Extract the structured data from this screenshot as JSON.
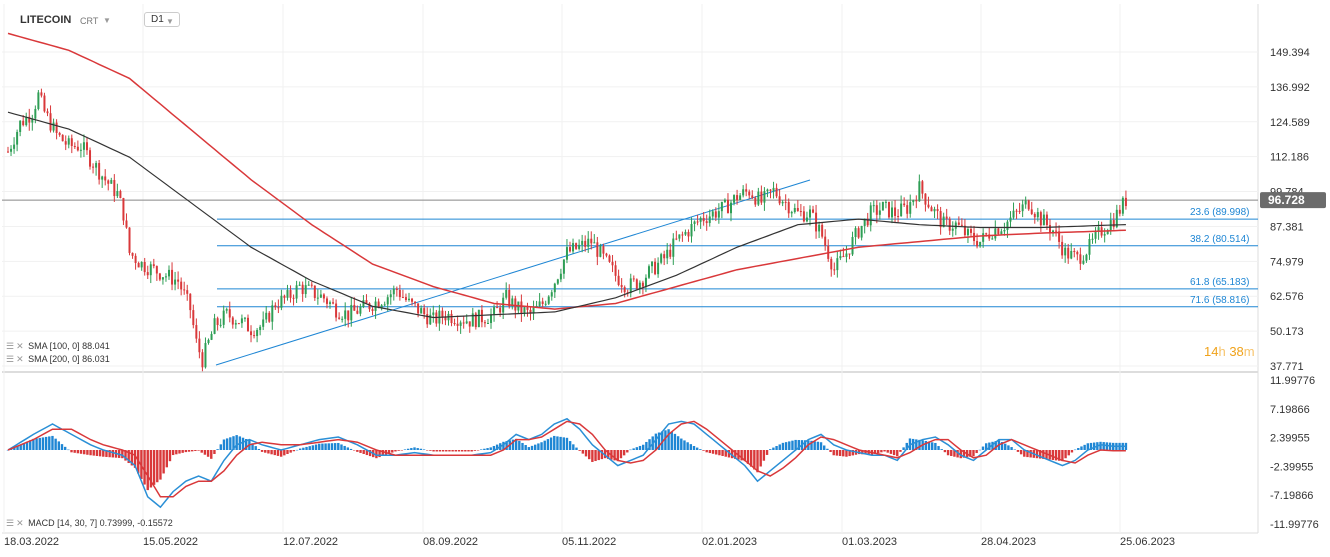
{
  "header": {
    "symbol": "LITECOIN",
    "type": "CRT",
    "timeframe": "D1"
  },
  "legend": {
    "sma100": "SMA [100, 0] 88.041",
    "sma200": "SMA [200, 0] 86.031",
    "macd": "MACD [14, 30, 7] 0.73999, -0.15572"
  },
  "timer": {
    "hours": "14",
    "h": "h",
    "minutes": "38",
    "m": "m"
  },
  "colors": {
    "candle_up": "#2e9e55",
    "candle_down": "#d9383a",
    "sma100": "#333333",
    "sma200": "#d9383a",
    "fib": "#1e86d4",
    "price_tag": "#6b6b6b",
    "macd_pos": "#1e86d4",
    "macd_neg": "#d9383a"
  },
  "chart_data": [
    {
      "type": "candlestick",
      "title": "LITECOIN",
      "x_ticks": [
        "18.03.2022",
        "15.05.2022",
        "12.07.2022",
        "08.09.2022",
        "05.11.2022",
        "02.01.2023",
        "01.03.2023",
        "28.04.2023",
        "25.06.2023"
      ],
      "y_ticks": [
        "149.394",
        "136.992",
        "124.589",
        "112.186",
        "99.784",
        "87.381",
        "74.979",
        "62.576",
        "50.173",
        "37.771"
      ],
      "ylim": [
        37.771,
        156
      ],
      "last_price": "96.728",
      "fib_levels": [
        {
          "label": "23.6 (89.998)",
          "value": 89.998
        },
        {
          "label": "38.2 (80.514)",
          "value": 80.514
        },
        {
          "label": "61.8 (65.183)",
          "value": 65.183
        },
        {
          "label": "71.6 (58.816)",
          "value": 58.816
        }
      ],
      "trendline": {
        "from": [
          "2022-06-18",
          39.0
        ],
        "to": [
          "2023-02-01",
          104.0
        ]
      },
      "price_path": [
        [
          0,
          114
        ],
        [
          4,
          124
        ],
        [
          8,
          128
        ],
        [
          10,
          134
        ],
        [
          12,
          128
        ],
        [
          16,
          120
        ],
        [
          20,
          116
        ],
        [
          24,
          116
        ],
        [
          28,
          110
        ],
        [
          32,
          104
        ],
        [
          36,
          99
        ],
        [
          38,
          92
        ],
        [
          40,
          78
        ],
        [
          44,
          74
        ],
        [
          48,
          72
        ],
        [
          52,
          70
        ],
        [
          56,
          68
        ],
        [
          60,
          58
        ],
        [
          62,
          46
        ],
        [
          64,
          40
        ],
        [
          68,
          52
        ],
        [
          72,
          56
        ],
        [
          76,
          54
        ],
        [
          80,
          51
        ],
        [
          84,
          52
        ],
        [
          88,
          60
        ],
        [
          92,
          62
        ],
        [
          96,
          66
        ],
        [
          100,
          64
        ],
        [
          104,
          62
        ],
        [
          108,
          58
        ],
        [
          112,
          56
        ],
        [
          116,
          58
        ],
        [
          120,
          60
        ],
        [
          124,
          62
        ],
        [
          128,
          65
        ],
        [
          132,
          60
        ],
        [
          136,
          57
        ],
        [
          140,
          54
        ],
        [
          144,
          56
        ],
        [
          148,
          55
        ],
        [
          152,
          54
        ],
        [
          156,
          55
        ],
        [
          160,
          56
        ],
        [
          164,
          62
        ],
        [
          168,
          58
        ],
        [
          172,
          56
        ],
        [
          176,
          60
        ],
        [
          180,
          68
        ],
        [
          184,
          78
        ],
        [
          188,
          80
        ],
        [
          192,
          82
        ],
        [
          196,
          76
        ],
        [
          200,
          70
        ],
        [
          204,
          66
        ],
        [
          208,
          68
        ],
        [
          212,
          72
        ],
        [
          216,
          76
        ],
        [
          220,
          82
        ],
        [
          224,
          86
        ],
        [
          228,
          90
        ],
        [
          232,
          92
        ],
        [
          236,
          94
        ],
        [
          240,
          98
        ],
        [
          244,
          100
        ],
        [
          248,
          96
        ],
        [
          252,
          100
        ],
        [
          256,
          96
        ],
        [
          260,
          92
        ],
        [
          264,
          92
        ],
        [
          268,
          84
        ],
        [
          272,
          72
        ],
        [
          276,
          78
        ],
        [
          280,
          86
        ],
        [
          284,
          92
        ],
        [
          288,
          94
        ],
        [
          292,
          92
        ],
        [
          296,
          94
        ],
        [
          300,
          101
        ],
        [
          304,
          94
        ],
        [
          308,
          88
        ],
        [
          312,
          88
        ],
        [
          316,
          84
        ],
        [
          320,
          82
        ],
        [
          324,
          86
        ],
        [
          328,
          88
        ],
        [
          332,
          92
        ],
        [
          336,
          96
        ],
        [
          340,
          90
        ],
        [
          344,
          86
        ],
        [
          348,
          78
        ],
        [
          352,
          76
        ],
        [
          356,
          80
        ],
        [
          360,
          86
        ],
        [
          364,
          90
        ],
        [
          368,
          96.728
        ]
      ],
      "sma100": [
        [
          0,
          128
        ],
        [
          20,
          122
        ],
        [
          40,
          112
        ],
        [
          60,
          96
        ],
        [
          80,
          80
        ],
        [
          100,
          68
        ],
        [
          120,
          59
        ],
        [
          140,
          55
        ],
        [
          160,
          56
        ],
        [
          180,
          57
        ],
        [
          200,
          62
        ],
        [
          220,
          70
        ],
        [
          240,
          80
        ],
        [
          260,
          88
        ],
        [
          280,
          90
        ],
        [
          300,
          88
        ],
        [
          320,
          87
        ],
        [
          340,
          87
        ],
        [
          368,
          88.041
        ]
      ],
      "sma200": [
        [
          0,
          156
        ],
        [
          20,
          150
        ],
        [
          40,
          140
        ],
        [
          60,
          122
        ],
        [
          80,
          104
        ],
        [
          100,
          88
        ],
        [
          120,
          74
        ],
        [
          140,
          66
        ],
        [
          160,
          60
        ],
        [
          180,
          58
        ],
        [
          200,
          60
        ],
        [
          220,
          66
        ],
        [
          240,
          72
        ],
        [
          260,
          76
        ],
        [
          280,
          80
        ],
        [
          300,
          82
        ],
        [
          320,
          84
        ],
        [
          340,
          85
        ],
        [
          368,
          86.031
        ]
      ]
    },
    {
      "type": "macd",
      "title": "MACD [14, 30, 7] 0.73999, -0.15572",
      "y_ticks": [
        "11.99776",
        "7.19866",
        "2.39955",
        "-2.39955",
        "-7.19866",
        "-11.99776"
      ],
      "ylim": [
        -11.99776,
        11.99776
      ],
      "macd_path": [
        [
          0,
          0
        ],
        [
          8,
          3
        ],
        [
          14,
          5
        ],
        [
          20,
          3
        ],
        [
          26,
          1
        ],
        [
          30,
          0
        ],
        [
          36,
          -1
        ],
        [
          40,
          -3
        ],
        [
          44,
          -9
        ],
        [
          48,
          -11
        ],
        [
          52,
          -8
        ],
        [
          56,
          -6
        ],
        [
          60,
          -5
        ],
        [
          64,
          -6
        ],
        [
          68,
          -2
        ],
        [
          72,
          1
        ],
        [
          76,
          2
        ],
        [
          80,
          1
        ],
        [
          86,
          0
        ],
        [
          92,
          1
        ],
        [
          98,
          2
        ],
        [
          104,
          2.5
        ],
        [
          110,
          1
        ],
        [
          116,
          -1
        ],
        [
          122,
          -1
        ],
        [
          128,
          -0.5
        ],
        [
          134,
          -1
        ],
        [
          140,
          -1
        ],
        [
          146,
          -1
        ],
        [
          152,
          -0.5
        ],
        [
          156,
          1
        ],
        [
          160,
          3
        ],
        [
          164,
          2
        ],
        [
          168,
          3
        ],
        [
          172,
          5
        ],
        [
          176,
          6
        ],
        [
          180,
          4
        ],
        [
          184,
          1
        ],
        [
          188,
          -1
        ],
        [
          192,
          -3
        ],
        [
          196,
          -2
        ],
        [
          200,
          -1
        ],
        [
          204,
          2
        ],
        [
          208,
          5
        ],
        [
          212,
          5.5
        ],
        [
          216,
          5
        ],
        [
          220,
          3
        ],
        [
          224,
          1
        ],
        [
          228,
          -1
        ],
        [
          232,
          -3
        ],
        [
          236,
          -6
        ],
        [
          240,
          -4
        ],
        [
          244,
          -2
        ],
        [
          248,
          0
        ],
        [
          252,
          2
        ],
        [
          256,
          3
        ],
        [
          260,
          1
        ],
        [
          264,
          0
        ],
        [
          268,
          -0.5
        ],
        [
          272,
          -1
        ],
        [
          276,
          -1
        ],
        [
          280,
          -2
        ],
        [
          284,
          1
        ],
        [
          288,
          2
        ],
        [
          292,
          2.5
        ],
        [
          296,
          1
        ],
        [
          300,
          -1
        ],
        [
          304,
          -2
        ],
        [
          308,
          0
        ],
        [
          312,
          2
        ],
        [
          316,
          2
        ],
        [
          320,
          0
        ],
        [
          324,
          -1
        ],
        [
          328,
          -2
        ],
        [
          332,
          -3
        ],
        [
          336,
          -2
        ],
        [
          340,
          0
        ],
        [
          344,
          1
        ],
        [
          348,
          0.74
        ],
        [
          352,
          0.74
        ]
      ],
      "signal_path": [
        [
          0,
          0
        ],
        [
          8,
          2
        ],
        [
          14,
          4
        ],
        [
          20,
          4
        ],
        [
          26,
          2
        ],
        [
          30,
          1
        ],
        [
          36,
          0
        ],
        [
          40,
          -1
        ],
        [
          44,
          -5
        ],
        [
          48,
          -9
        ],
        [
          52,
          -9
        ],
        [
          56,
          -7
        ],
        [
          60,
          -6
        ],
        [
          64,
          -6
        ],
        [
          68,
          -4
        ],
        [
          72,
          -1
        ],
        [
          76,
          1
        ],
        [
          80,
          1.5
        ],
        [
          86,
          1
        ],
        [
          92,
          1
        ],
        [
          98,
          1.5
        ],
        [
          104,
          2
        ],
        [
          110,
          1.5
        ],
        [
          116,
          0
        ],
        [
          122,
          -1
        ],
        [
          128,
          -1
        ],
        [
          134,
          -1
        ],
        [
          140,
          -1
        ],
        [
          146,
          -1
        ],
        [
          152,
          -1
        ],
        [
          156,
          0
        ],
        [
          160,
          2
        ],
        [
          164,
          2
        ],
        [
          168,
          2.5
        ],
        [
          172,
          4
        ],
        [
          176,
          5.5
        ],
        [
          180,
          5
        ],
        [
          184,
          3
        ],
        [
          188,
          0
        ],
        [
          192,
          -2
        ],
        [
          196,
          -2.5
        ],
        [
          200,
          -2
        ],
        [
          204,
          0
        ],
        [
          208,
          3
        ],
        [
          212,
          5
        ],
        [
          216,
          5.5
        ],
        [
          220,
          4
        ],
        [
          224,
          2
        ],
        [
          228,
          0
        ],
        [
          232,
          -2
        ],
        [
          236,
          -4
        ],
        [
          240,
          -5
        ],
        [
          244,
          -3.5
        ],
        [
          248,
          -1.5
        ],
        [
          252,
          1
        ],
        [
          256,
          2.5
        ],
        [
          260,
          2
        ],
        [
          264,
          1
        ],
        [
          268,
          0
        ],
        [
          272,
          -0.5
        ],
        [
          276,
          -1
        ],
        [
          280,
          -1.5
        ],
        [
          284,
          -0.5
        ],
        [
          288,
          1
        ],
        [
          292,
          2
        ],
        [
          296,
          2
        ],
        [
          300,
          0
        ],
        [
          304,
          -1.5
        ],
        [
          308,
          -1
        ],
        [
          312,
          1
        ],
        [
          316,
          2
        ],
        [
          320,
          1
        ],
        [
          324,
          0
        ],
        [
          328,
          -1
        ],
        [
          332,
          -2
        ],
        [
          336,
          -2.5
        ],
        [
          340,
          -1
        ],
        [
          344,
          0
        ],
        [
          348,
          -0.16
        ],
        [
          352,
          -0.16
        ]
      ]
    }
  ]
}
